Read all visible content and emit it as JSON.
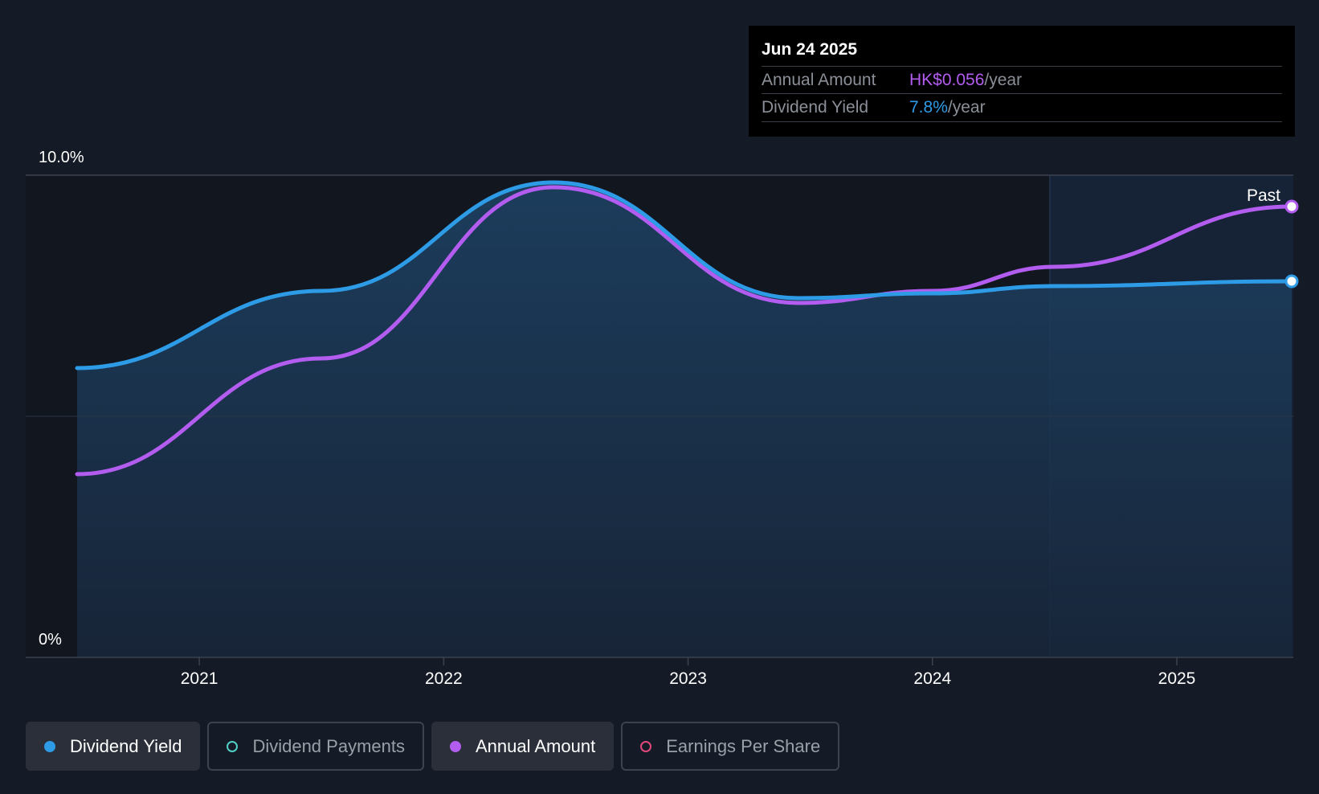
{
  "tooltip": {
    "date": "Jun 24 2025",
    "rows": [
      {
        "label": "Annual Amount",
        "value": "HK$0.056",
        "unit": "/year",
        "color": "#b35cf0"
      },
      {
        "label": "Dividend Yield",
        "value": "7.8%",
        "unit": "/year",
        "color": "#2e9be6"
      }
    ]
  },
  "past_label": "Past",
  "legend": [
    {
      "label": "Dividend Yield",
      "color": "#2e9be6",
      "filled": true,
      "active": true
    },
    {
      "label": "Dividend Payments",
      "color": "#4fd1c5",
      "filled": false,
      "active": false
    },
    {
      "label": "Annual Amount",
      "color": "#b35cf0",
      "filled": true,
      "active": true
    },
    {
      "label": "Earnings Per Share",
      "color": "#e0487a",
      "filled": false,
      "active": false
    }
  ],
  "chart_data": {
    "type": "line",
    "y_tick_labels": [
      "10.0%",
      "0%"
    ],
    "ylim": [
      0,
      10
    ],
    "x_tick_labels": [
      "2021",
      "2022",
      "2023",
      "2024",
      "2025"
    ],
    "xlim": [
      2020.5,
      2025.47
    ],
    "past_region_start": 2024.48,
    "grid": true,
    "series": [
      {
        "name": "Dividend Yield",
        "color": "#2e9be6",
        "points": [
          [
            2020.5,
            6.0
          ],
          [
            2021.5,
            7.6
          ],
          [
            2022.45,
            9.85
          ],
          [
            2023.45,
            7.45
          ],
          [
            2024.0,
            7.55
          ],
          [
            2024.5,
            7.7
          ],
          [
            2025.47,
            7.8
          ]
        ]
      },
      {
        "name": "Annual Amount",
        "color": "#b35cf0",
        "points": [
          [
            2020.5,
            3.8
          ],
          [
            2021.5,
            6.2
          ],
          [
            2022.45,
            9.75
          ],
          [
            2023.45,
            7.35
          ],
          [
            2024.0,
            7.6
          ],
          [
            2024.5,
            8.1
          ],
          [
            2025.47,
            9.35
          ]
        ]
      }
    ]
  }
}
